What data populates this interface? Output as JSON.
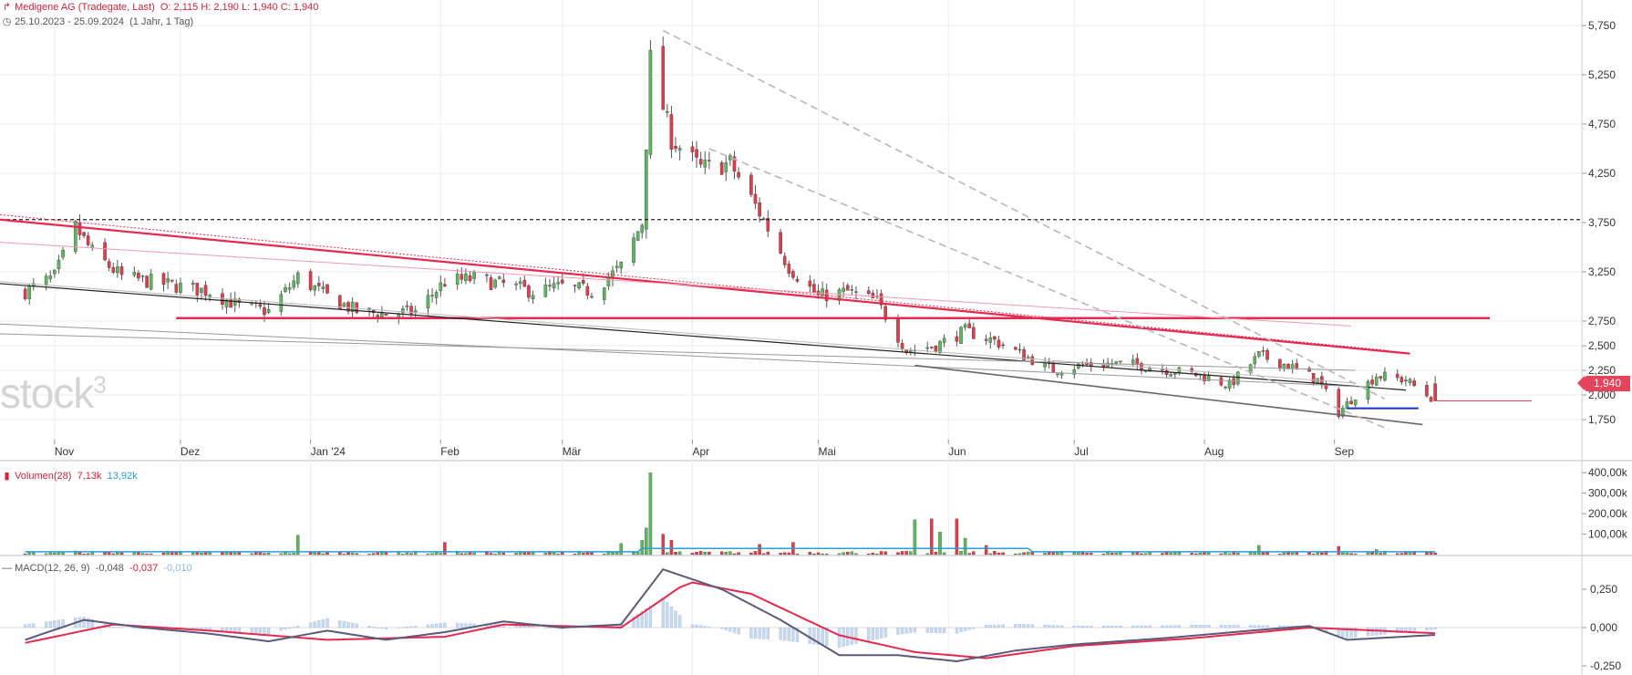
{
  "header": {
    "instrument": "Medigene AG (Tradegate, Last)",
    "ohlc": "O: 2,115  H: 2,190  L: 1,940  C: 1,940",
    "period": "25.10.2023 - 25.09.2024",
    "interval": "(1 Jahr, 1 Tag)"
  },
  "price_tag": "1,940",
  "watermark": {
    "text": "stock",
    "sup": "3"
  },
  "colors": {
    "up": "#5cb85c",
    "down": "#e23b4a",
    "trend_red": "#e5294f",
    "accent_blue": "#1b2fd6",
    "signal": "#e5294f",
    "macd": "#5a5a7a",
    "vol_avg": "#2a9fd0"
  },
  "chart_data": [
    {
      "type": "candlestick",
      "title": "Medigene AG (Tradegate, Last)",
      "x_ticks": [
        "Nov",
        "Dez",
        "Jan '24",
        "Feb",
        "Mär",
        "Apr",
        "Mai",
        "Jun",
        "Jul",
        "Aug",
        "Sep"
      ],
      "y_ticks": [
        "5,750",
        "5,250",
        "4,750",
        "4,250",
        "3,750",
        "3,250",
        "2,750",
        "2,500",
        "2,250",
        "2,000",
        "1,750"
      ],
      "ylim": [
        1.55,
        5.85
      ],
      "last": 1.94,
      "ohlc": {
        "open": 2.115,
        "high": 2.19,
        "low": 1.94,
        "close": 1.94
      },
      "reference_levels": [
        3.78,
        2.78
      ],
      "close_series": [
        {
          "d": "2023-10-25",
          "c": 3.05
        },
        {
          "d": "2023-11-01",
          "c": 3.2
        },
        {
          "d": "2023-11-06",
          "c": 3.7
        },
        {
          "d": "2023-11-10",
          "c": 3.45
        },
        {
          "d": "2023-11-17",
          "c": 3.2
        },
        {
          "d": "2023-11-24",
          "c": 3.15
        },
        {
          "d": "2023-12-01",
          "c": 3.1
        },
        {
          "d": "2023-12-08",
          "c": 3.05
        },
        {
          "d": "2023-12-15",
          "c": 2.9
        },
        {
          "d": "2023-12-22",
          "c": 2.85
        },
        {
          "d": "2023-12-29",
          "c": 3.2
        },
        {
          "d": "2024-01-05",
          "c": 3.0
        },
        {
          "d": "2024-01-12",
          "c": 2.85
        },
        {
          "d": "2024-01-19",
          "c": 2.82
        },
        {
          "d": "2024-01-26",
          "c": 2.85
        },
        {
          "d": "2024-02-02",
          "c": 3.15
        },
        {
          "d": "2024-02-09",
          "c": 3.18
        },
        {
          "d": "2024-02-16",
          "c": 3.12
        },
        {
          "d": "2024-02-23",
          "c": 3.05
        },
        {
          "d": "2024-03-01",
          "c": 3.1
        },
        {
          "d": "2024-03-08",
          "c": 3.05
        },
        {
          "d": "2024-03-15",
          "c": 3.3
        },
        {
          "d": "2024-03-20",
          "c": 3.75
        },
        {
          "d": "2024-03-22",
          "c": 5.4
        },
        {
          "d": "2024-03-27",
          "c": 4.6
        },
        {
          "d": "2024-04-03",
          "c": 4.3
        },
        {
          "d": "2024-04-10",
          "c": 4.35
        },
        {
          "d": "2024-04-17",
          "c": 3.85
        },
        {
          "d": "2024-04-24",
          "c": 3.3
        },
        {
          "d": "2024-05-01",
          "c": 3.0
        },
        {
          "d": "2024-05-08",
          "c": 3.05
        },
        {
          "d": "2024-05-15",
          "c": 2.95
        },
        {
          "d": "2024-05-22",
          "c": 2.45
        },
        {
          "d": "2024-05-29",
          "c": 2.5
        },
        {
          "d": "2024-06-05",
          "c": 2.65
        },
        {
          "d": "2024-06-12",
          "c": 2.55
        },
        {
          "d": "2024-06-19",
          "c": 2.4
        },
        {
          "d": "2024-06-26",
          "c": 2.25
        },
        {
          "d": "2024-07-03",
          "c": 2.3
        },
        {
          "d": "2024-07-10",
          "c": 2.32
        },
        {
          "d": "2024-07-17",
          "c": 2.3
        },
        {
          "d": "2024-07-24",
          "c": 2.25
        },
        {
          "d": "2024-07-31",
          "c": 2.2
        },
        {
          "d": "2024-08-07",
          "c": 2.1
        },
        {
          "d": "2024-08-14",
          "c": 2.4
        },
        {
          "d": "2024-08-21",
          "c": 2.3
        },
        {
          "d": "2024-08-28",
          "c": 2.15
        },
        {
          "d": "2024-09-02",
          "c": 1.82
        },
        {
          "d": "2024-09-06",
          "c": 2.0
        },
        {
          "d": "2024-09-11",
          "c": 2.2
        },
        {
          "d": "2024-09-18",
          "c": 2.15
        },
        {
          "d": "2024-09-25",
          "c": 1.94
        }
      ]
    },
    {
      "type": "bar",
      "title": "Volumen(28)",
      "values_text": [
        "7,13k",
        "13,92k"
      ],
      "y_ticks": [
        "400,00k",
        "300,00k",
        "200,00k",
        "100,00k"
      ],
      "ylim": [
        0,
        410
      ],
      "unit": "k",
      "peaks": [
        {
          "d": "2023-11-06",
          "v": 18
        },
        {
          "d": "2023-12-29",
          "v": 95
        },
        {
          "d": "2024-02-02",
          "v": 60
        },
        {
          "d": "2024-03-15",
          "v": 55
        },
        {
          "d": "2024-03-20",
          "v": 70
        },
        {
          "d": "2024-03-21",
          "v": 130
        },
        {
          "d": "2024-03-22",
          "v": 400
        },
        {
          "d": "2024-03-25",
          "v": 100
        },
        {
          "d": "2024-03-27",
          "v": 70
        },
        {
          "d": "2024-04-17",
          "v": 50
        },
        {
          "d": "2024-04-25",
          "v": 60
        },
        {
          "d": "2024-05-24",
          "v": 170
        },
        {
          "d": "2024-05-28",
          "v": 175
        },
        {
          "d": "2024-05-30",
          "v": 110
        },
        {
          "d": "2024-06-03",
          "v": 175
        },
        {
          "d": "2024-06-05",
          "v": 80
        },
        {
          "d": "2024-06-10",
          "v": 45
        },
        {
          "d": "2024-08-14",
          "v": 45
        },
        {
          "d": "2024-09-02",
          "v": 40
        },
        {
          "d": "2024-09-11",
          "v": 25
        }
      ],
      "average_level": 13.92
    },
    {
      "type": "line",
      "title": "MACD(12, 26, 9)",
      "values_text": [
        "-0,048",
        "-0,037",
        "-0,010"
      ],
      "y_ticks": [
        "0,250",
        "0,000",
        "-0,250"
      ],
      "ylim": [
        -0.3,
        0.45
      ],
      "series": [
        {
          "name": "MACD",
          "points": [
            {
              "d": "2023-10-25",
              "v": -0.08
            },
            {
              "d": "2023-11-08",
              "v": 0.05
            },
            {
              "d": "2023-11-22",
              "v": 0.0
            },
            {
              "d": "2023-12-08",
              "v": -0.04
            },
            {
              "d": "2023-12-22",
              "v": -0.09
            },
            {
              "d": "2024-01-05",
              "v": -0.02
            },
            {
              "d": "2024-01-19",
              "v": -0.08
            },
            {
              "d": "2024-02-02",
              "v": -0.03
            },
            {
              "d": "2024-02-16",
              "v": 0.04
            },
            {
              "d": "2024-03-01",
              "v": 0.0
            },
            {
              "d": "2024-03-15",
              "v": 0.02
            },
            {
              "d": "2024-03-25",
              "v": 0.38
            },
            {
              "d": "2024-04-08",
              "v": 0.25
            },
            {
              "d": "2024-04-22",
              "v": 0.05
            },
            {
              "d": "2024-05-06",
              "v": -0.18
            },
            {
              "d": "2024-05-20",
              "v": -0.18
            },
            {
              "d": "2024-06-03",
              "v": -0.22
            },
            {
              "d": "2024-06-17",
              "v": -0.15
            },
            {
              "d": "2024-07-01",
              "v": -0.11
            },
            {
              "d": "2024-07-22",
              "v": -0.07
            },
            {
              "d": "2024-08-12",
              "v": -0.02
            },
            {
              "d": "2024-08-26",
              "v": 0.01
            },
            {
              "d": "2024-09-04",
              "v": -0.08
            },
            {
              "d": "2024-09-25",
              "v": -0.048
            }
          ]
        },
        {
          "name": "Signal",
          "points": [
            {
              "d": "2023-10-25",
              "v": -0.1
            },
            {
              "d": "2023-11-15",
              "v": 0.02
            },
            {
              "d": "2023-12-08",
              "v": -0.02
            },
            {
              "d": "2024-01-05",
              "v": -0.08
            },
            {
              "d": "2024-02-02",
              "v": -0.06
            },
            {
              "d": "2024-02-16",
              "v": 0.02
            },
            {
              "d": "2024-03-15",
              "v": 0.0
            },
            {
              "d": "2024-03-31",
              "v": 0.3
            },
            {
              "d": "2024-04-15",
              "v": 0.22
            },
            {
              "d": "2024-05-06",
              "v": -0.05
            },
            {
              "d": "2024-05-24",
              "v": -0.16
            },
            {
              "d": "2024-06-10",
              "v": -0.2
            },
            {
              "d": "2024-07-01",
              "v": -0.12
            },
            {
              "d": "2024-07-29",
              "v": -0.07
            },
            {
              "d": "2024-08-26",
              "v": 0.0
            },
            {
              "d": "2024-09-25",
              "v": -0.037
            }
          ]
        }
      ],
      "histogram_level": -0.01
    }
  ]
}
